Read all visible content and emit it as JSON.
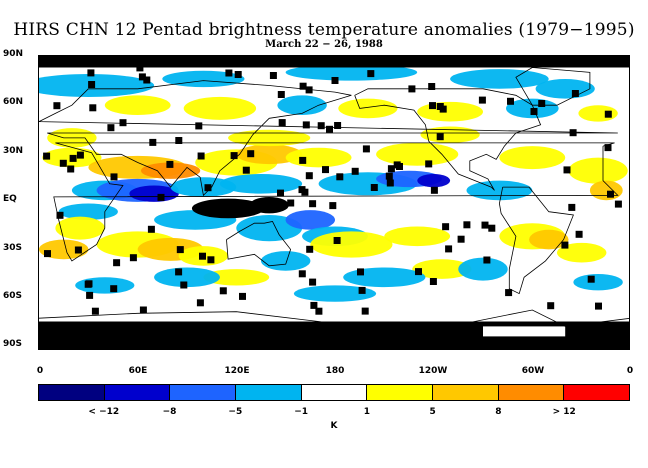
{
  "title": "HIRS CHN 12 Pentad brightness temperature anomalies (1979−1995)",
  "subtitle": "March 22 − 26, 1988",
  "lat_labels": [
    "90N",
    "60N",
    "30N",
    "EQ",
    "30S",
    "60S",
    "90S"
  ],
  "lon_labels": [
    "0",
    "60E",
    "120E",
    "180",
    "120W",
    "60W",
    "0"
  ],
  "colorbar": {
    "colors": [
      "#000080",
      "#0000cd",
      "#1e64ff",
      "#00b4f0",
      "#ffffff",
      "#ffff00",
      "#ffc800",
      "#ff8c00",
      "#ff0000"
    ],
    "labels": [
      "< −12",
      "−8",
      "−5",
      "−1",
      "1",
      "5",
      "8",
      "> 12"
    ],
    "unit": "K"
  },
  "colors": {
    "missing": "#000000",
    "coast": "#000000"
  }
}
